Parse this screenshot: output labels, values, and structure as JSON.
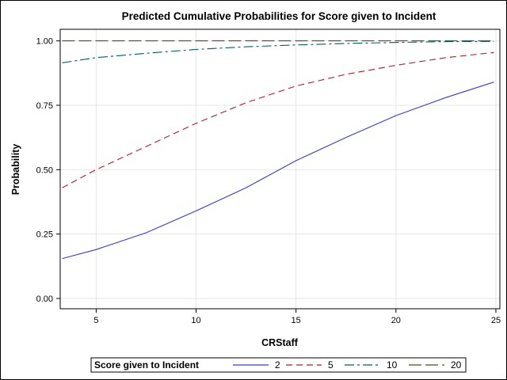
{
  "chart_data": {
    "type": "line",
    "title": "Predicted Cumulative Probabilities for Score  given  to  Incident",
    "xlabel": "CRStaff",
    "ylabel": "Probability",
    "xlim": [
      3.2,
      25.2
    ],
    "ylim": [
      -0.04,
      1.045
    ],
    "xticks": [
      5,
      10,
      15,
      20,
      25
    ],
    "yticks": [
      0.0,
      0.25,
      0.5,
      0.75,
      1.0
    ],
    "ytick_labels": [
      "0.00",
      "0.25",
      "0.50",
      "0.75",
      "1.00"
    ],
    "grid": true,
    "legend": {
      "title": "Score  given  to  Incident",
      "position": "bottom"
    },
    "x": [
      3.3,
      5,
      7.5,
      10,
      12.5,
      15,
      17.5,
      20,
      22.5,
      24.9
    ],
    "series": [
      {
        "name": "2",
        "color": "#3a3ad0",
        "dash": "solid",
        "values": [
          0.155,
          0.19,
          0.255,
          0.34,
          0.43,
          0.535,
          0.625,
          0.71,
          0.78,
          0.84
        ]
      },
      {
        "name": "5",
        "color": "#b01c2c",
        "dash": "dash",
        "values": [
          0.43,
          0.5,
          0.59,
          0.68,
          0.76,
          0.825,
          0.87,
          0.905,
          0.935,
          0.955
        ]
      },
      {
        "name": "10",
        "color": "#006060",
        "dash": "dashdot",
        "values": [
          0.915,
          0.935,
          0.952,
          0.967,
          0.977,
          0.984,
          0.99,
          0.994,
          0.997,
          0.998
        ]
      },
      {
        "name": "20",
        "color": "#5a4a10",
        "dash": "longdash",
        "values": [
          1.0,
          1.0,
          1.0,
          1.0,
          1.0,
          1.0,
          1.0,
          1.0,
          1.0,
          1.0
        ]
      }
    ]
  }
}
